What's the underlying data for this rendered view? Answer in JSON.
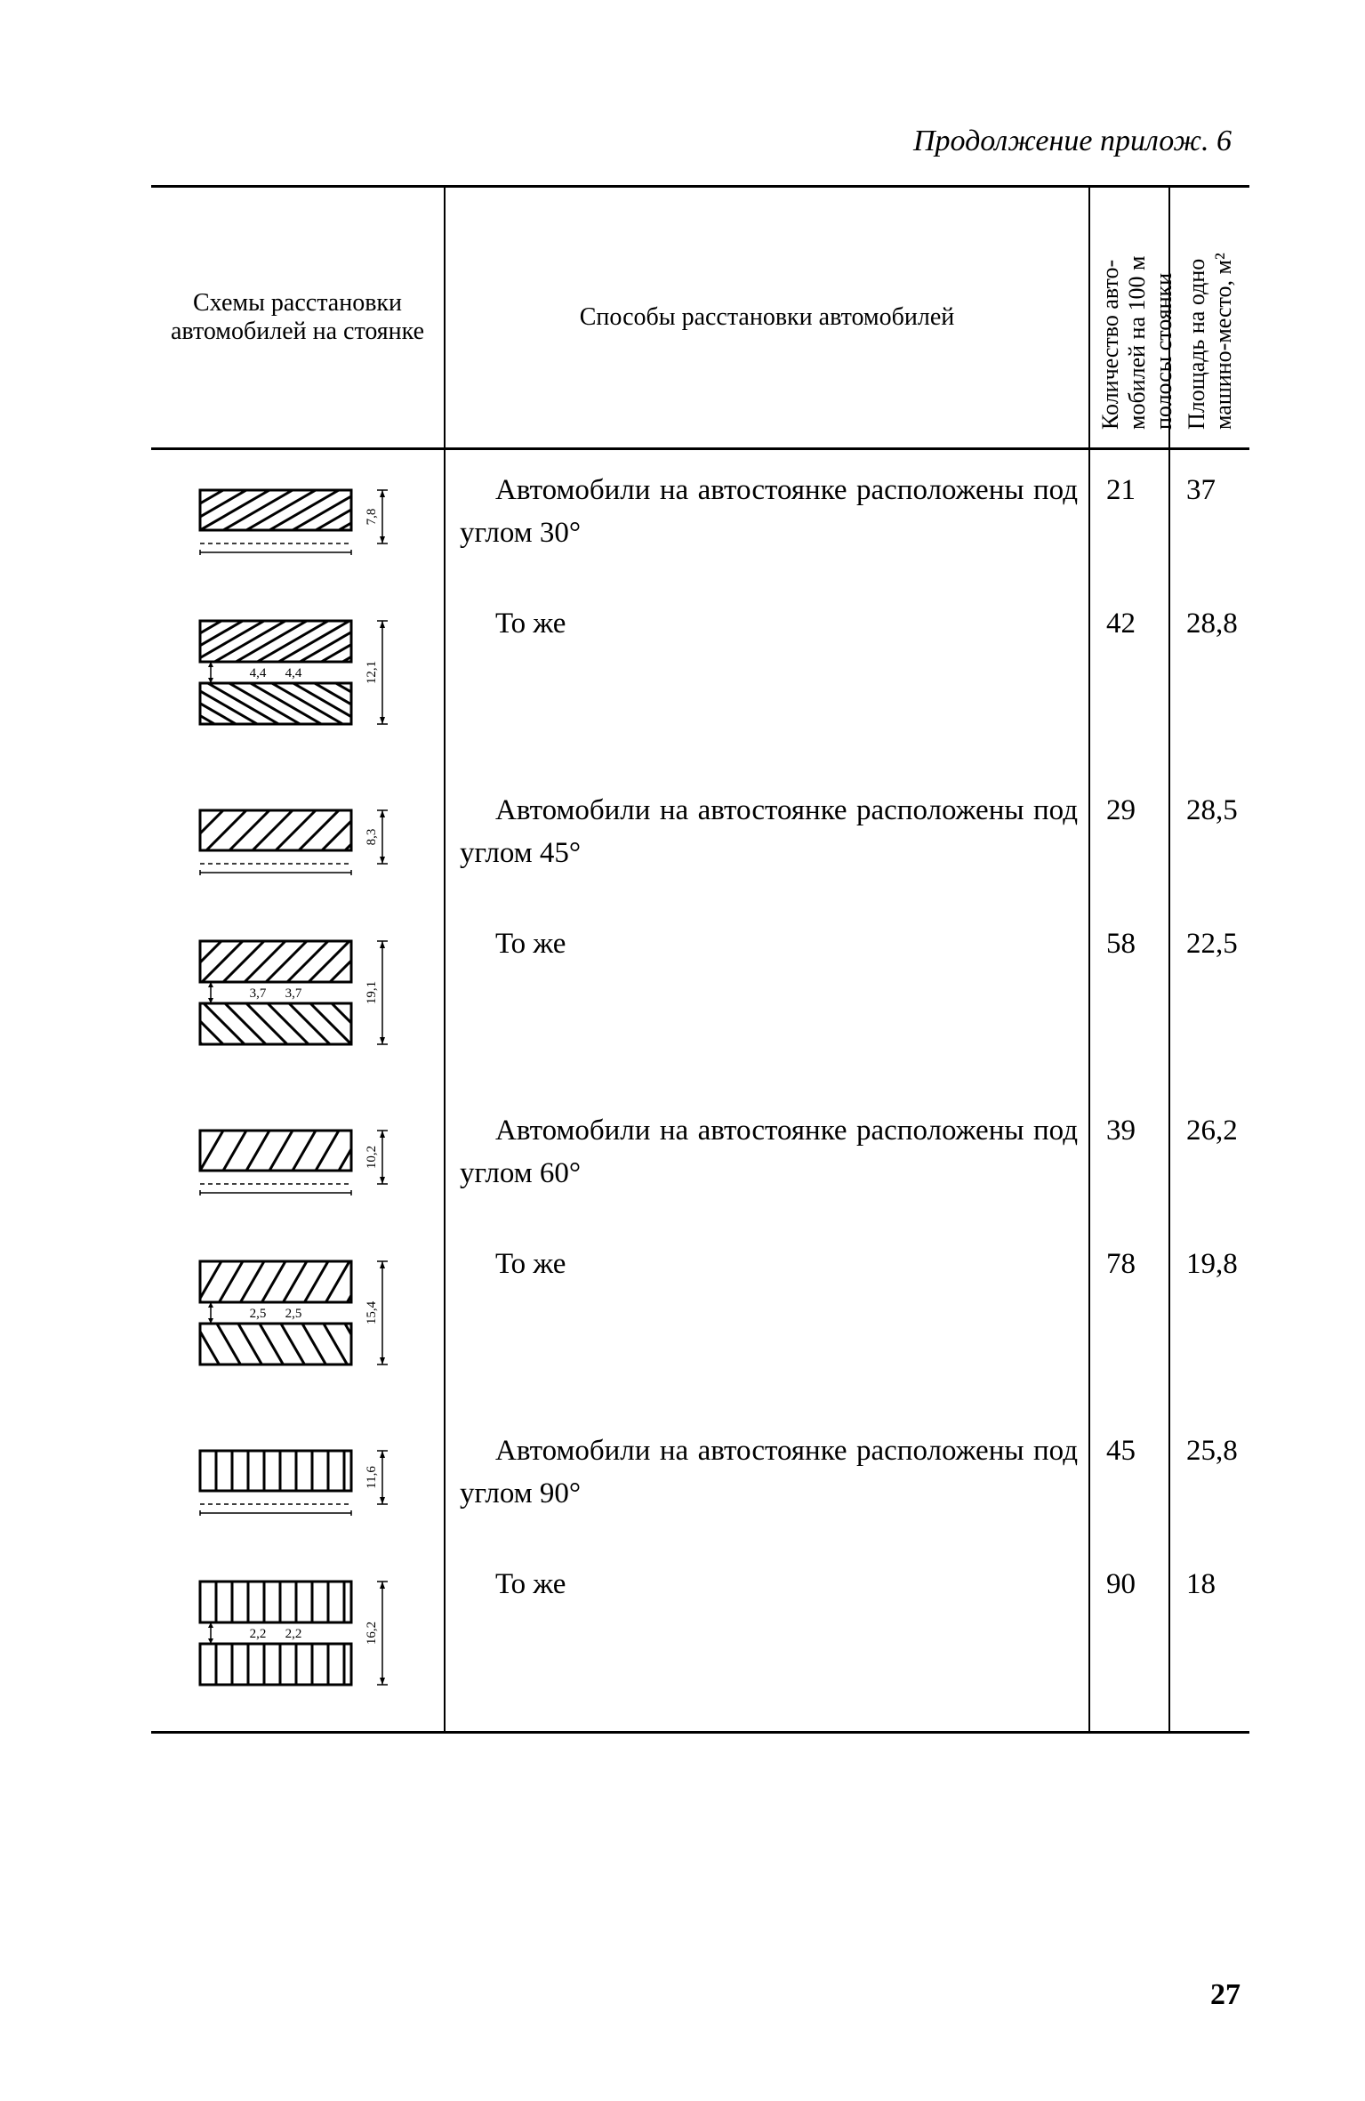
{
  "continuation": "Продолжение прилож. 6",
  "headers": {
    "col1": "Схемы расстановки автомобилей на стоянке",
    "col2": "Способы расстановки автомобилей",
    "col3": "Количество авто-\nмобилей на 100 м\nполосы стоянки",
    "col4": "Площадь на одно\nмашино-место, м²"
  },
  "rows": [
    {
      "diagram": {
        "type": "single",
        "angle": 30,
        "height_dim": "7,8"
      },
      "desc": "Автомобили на автостоянке рас­положены под углом 30°",
      "count": "21",
      "area": "37"
    },
    {
      "diagram": {
        "type": "double",
        "angle": 30,
        "height_dim": "12,1",
        "inner_dims": [
          "4,4",
          "4,4"
        ]
      },
      "desc": "То же",
      "count": "42",
      "area": "28,8"
    },
    {
      "diagram": {
        "type": "single",
        "angle": 45,
        "height_dim": "8,3"
      },
      "desc": "Автомобили на автостоянке рас­положены под углом 45°",
      "count": "29",
      "area": "28,5"
    },
    {
      "diagram": {
        "type": "double",
        "angle": 45,
        "height_dim": "19,1",
        "inner_dims": [
          "3,7",
          "3,7"
        ]
      },
      "desc": "То же",
      "count": "58",
      "area": "22,5"
    },
    {
      "diagram": {
        "type": "single",
        "angle": 60,
        "height_dim": "10,2"
      },
      "desc": "Автомобили на автостоянке рас­положены под углом 60°",
      "count": "39",
      "area": "26,2"
    },
    {
      "diagram": {
        "type": "double",
        "angle": 60,
        "height_dim": "15,4",
        "inner_dims": [
          "2,5",
          "2,5"
        ]
      },
      "desc": "То же",
      "count": "78",
      "area": "19,8"
    },
    {
      "diagram": {
        "type": "single",
        "angle": 90,
        "height_dim": "11,6"
      },
      "desc": "Автомобили на автостоянке рас­положены под углом 90°",
      "count": "45",
      "area": "25,8"
    },
    {
      "diagram": {
        "type": "double",
        "angle": 90,
        "height_dim": "16,2",
        "inner_dims": [
          "2,2",
          "2,2"
        ]
      },
      "desc": "То же",
      "count": "90",
      "area": "18"
    }
  ],
  "page_number": "27"
}
